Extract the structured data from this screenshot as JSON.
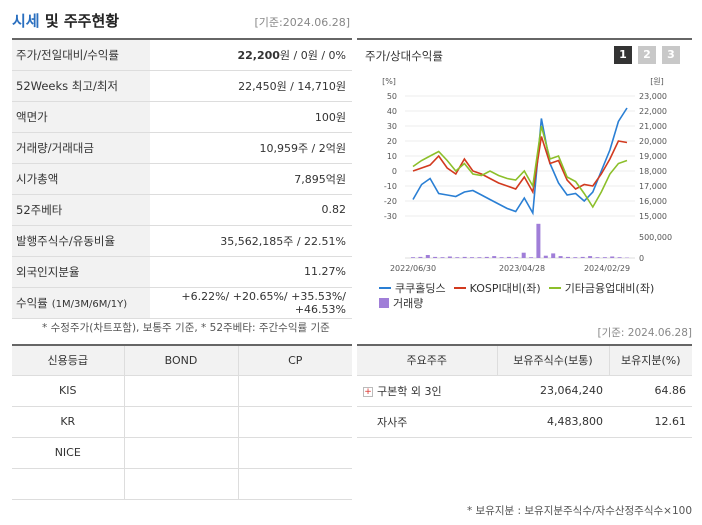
{
  "header": {
    "title_main": "시세",
    "title_and": " 및 ",
    "title_rest": "주주현황",
    "date": "[기준:2024.06.28]"
  },
  "summary": [
    {
      "k": "주가/전일대비/수익률",
      "v_bold": "22,200",
      "v_rest": "원 / 0원 / 0%"
    },
    {
      "k": "52Weeks 최고/최저",
      "v": "22,450원 / 14,710원"
    },
    {
      "k": "액면가",
      "v": "100원"
    },
    {
      "k": "거래량/거래대금",
      "v": "10,959주 / 2억원"
    },
    {
      "k": "시가총액",
      "v": "7,895억원"
    },
    {
      "k": "52주베타",
      "v": "0.82"
    },
    {
      "k": "발행주식수/유동비율",
      "v": "35,562,185주 / 22.51%"
    },
    {
      "k": "외국인지분율",
      "v": "11.27%"
    }
  ],
  "returns": {
    "k": "수익률",
    "k_sub": "(1M/3M/6M/1Y)",
    "values": [
      "+6.22%",
      "+20.65%",
      "+35.53%",
      "+46.53%"
    ]
  },
  "note1": "* 수정주가(차트포함), 보통주 기준, * 52주베타: 주간수익률 기준",
  "date_mid": "[기준: 2024.06.28]",
  "chart_panel": {
    "title": "주가/상대수익률",
    "buttons": [
      "1",
      "2",
      "3"
    ]
  },
  "chart_data": {
    "type": "line",
    "left_unit": "[%]",
    "right_unit": "[원]",
    "left_ticks": [
      50,
      40,
      30,
      20,
      10,
      0,
      -10,
      -20,
      -30
    ],
    "right_ticks": [
      "23,000",
      "22,000",
      "21,000",
      "20,000",
      "19,000",
      "18,000",
      "17,000",
      "16,000",
      "15,000"
    ],
    "volume_ticks": [
      "500,000",
      "0"
    ],
    "x_labels": [
      "2022/06/30",
      "2023/04/28",
      "2024/02/29"
    ],
    "series": [
      {
        "name": "쿠쿠홀딩스",
        "color": "#2a7fd4",
        "values": [
          -19,
          -9,
          -5,
          -15,
          -16,
          -17,
          -14,
          -13,
          -16,
          -19,
          -22,
          -25,
          -27,
          -18,
          -28,
          35,
          5,
          -8,
          -16,
          -15,
          -20,
          -14,
          0,
          14,
          33,
          42
        ]
      },
      {
        "name": "KOSPI대비(좌)",
        "color": "#d23a1f",
        "values": [
          0,
          2,
          4,
          10,
          2,
          -2,
          8,
          0,
          -2,
          -5,
          -8,
          -10,
          -12,
          -4,
          -14,
          23,
          5,
          7,
          -6,
          -12,
          -9,
          -10,
          -2,
          8,
          20,
          19
        ]
      },
      {
        "name": "기타금융업대비(좌)",
        "color": "#8cbf2a",
        "values": [
          3,
          7,
          10,
          13,
          7,
          0,
          5,
          -2,
          -3,
          0,
          -3,
          -5,
          -6,
          0,
          -10,
          30,
          8,
          10,
          -4,
          -7,
          -15,
          -24,
          -14,
          -2,
          5,
          7
        ]
      }
    ],
    "volume": {
      "name": "거래량",
      "color": "#a07ed8",
      "values": [
        0.02,
        0.03,
        0.08,
        0.03,
        0.02,
        0.04,
        0.02,
        0.03,
        0.02,
        0.02,
        0.03,
        0.05,
        0.02,
        0.03,
        0.02,
        0.14,
        0.02,
        0.9,
        0.06,
        0.12,
        0.05,
        0.03,
        0.02,
        0.03,
        0.05,
        0.02,
        0.02,
        0.04,
        0.02,
        0.01
      ]
    }
  },
  "credit": {
    "headers": [
      "신용등급",
      "BOND",
      "CP"
    ],
    "rows": [
      [
        "KIS",
        "",
        ""
      ],
      [
        "KR",
        "",
        ""
      ],
      [
        "NICE",
        "",
        ""
      ],
      [
        "",
        "",
        ""
      ]
    ]
  },
  "holders": {
    "headers": [
      "주요주주",
      "보유주식수(보통)",
      "보유지분(%)"
    ],
    "rows": [
      {
        "name": "구본학 외 3인",
        "plus": true,
        "shares": "23,064,240",
        "pct": "64.86"
      },
      {
        "name": "자사주",
        "plus": false,
        "shares": "4,483,800",
        "pct": "12.61"
      }
    ]
  },
  "note2": "* 보유지분 : 보유지분주식수/자수산정주식수×100"
}
